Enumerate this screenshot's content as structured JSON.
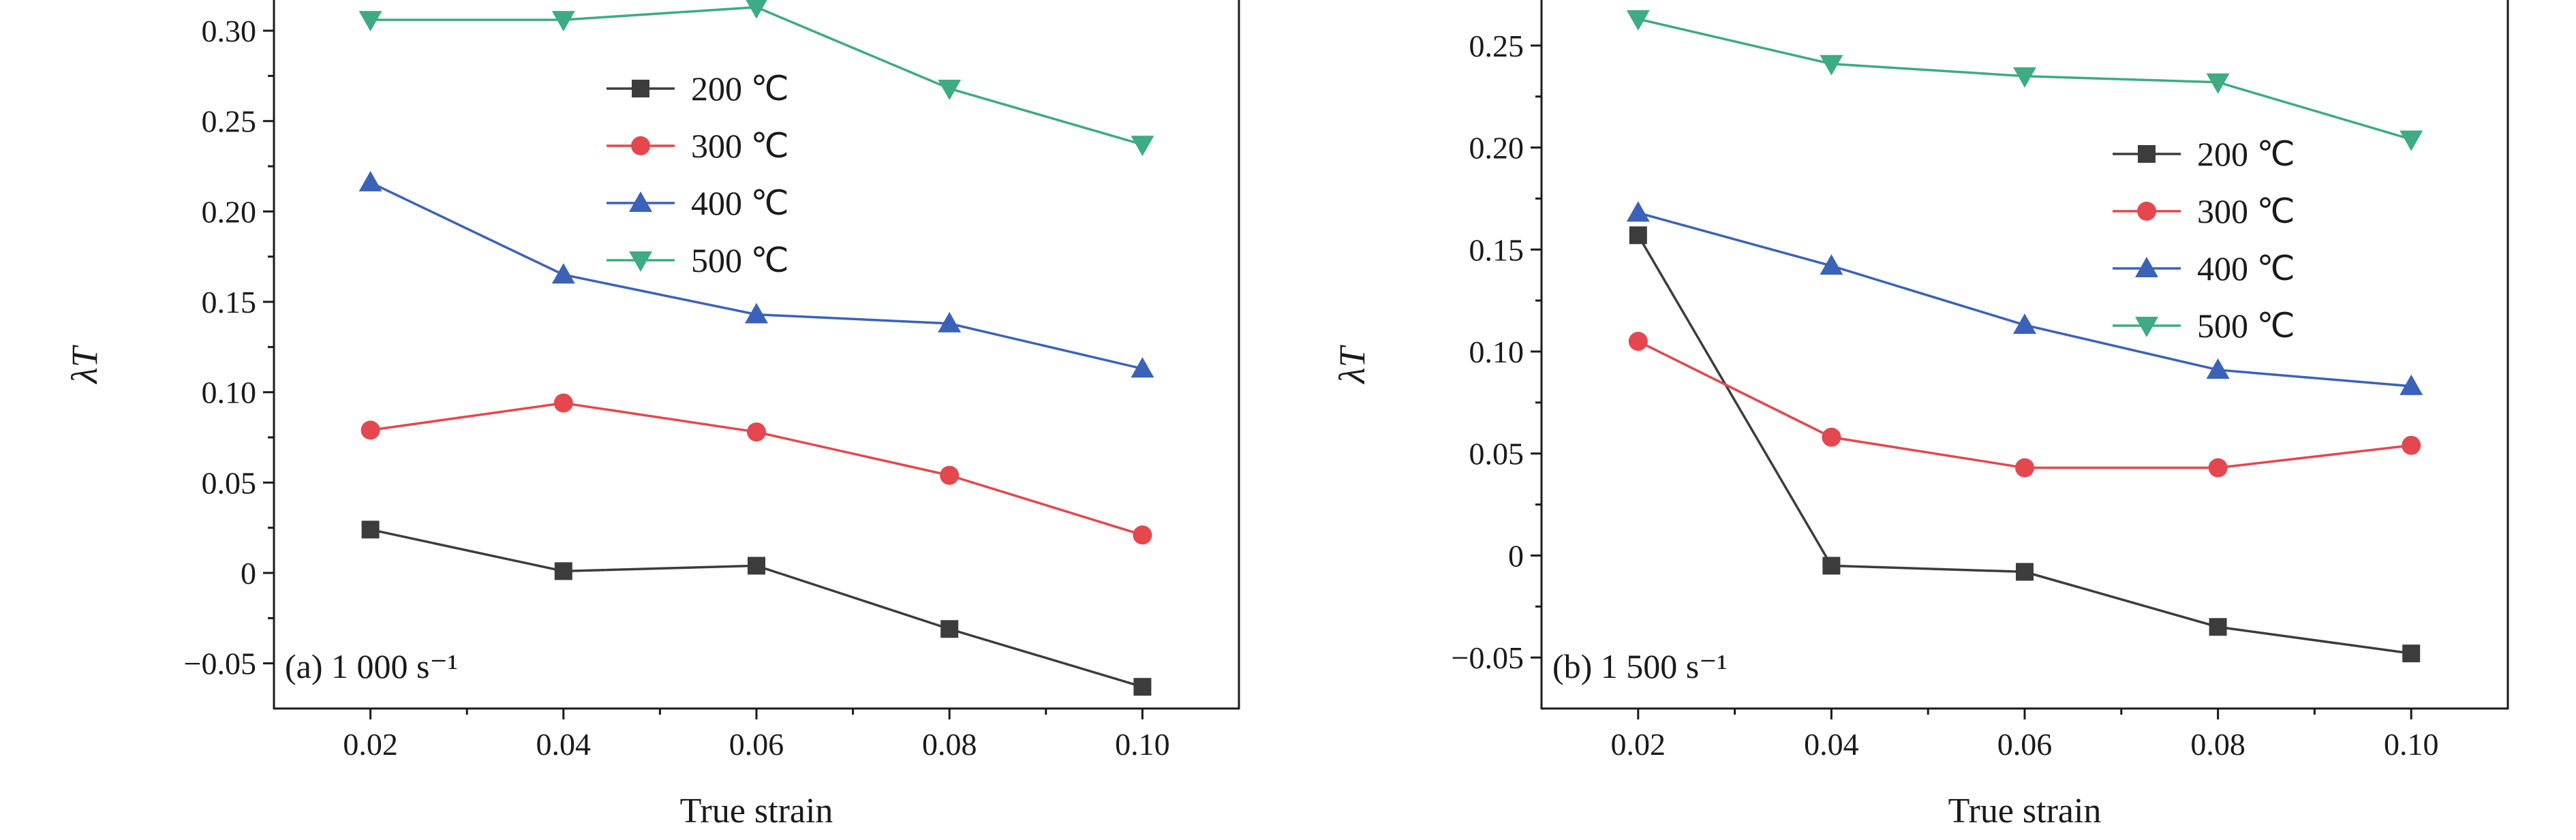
{
  "chart_data": [
    {
      "type": "line",
      "annotation": "(a) 1 000 s⁻¹",
      "xlabel": "True strain",
      "ylabel": "λT",
      "xlim": [
        0.01,
        0.11
      ],
      "ylim": [
        -0.075,
        0.32
      ],
      "xticks": [
        "0.02",
        "0.04",
        "0.06",
        "0.08",
        "0.10"
      ],
      "yticks": [
        "−0.05",
        "0",
        "0.05",
        "0.10",
        "0.15",
        "0.20",
        "0.25",
        "0.30"
      ],
      "x": [
        0.02,
        0.04,
        0.06,
        0.08,
        0.1
      ],
      "legend_position": "top-center",
      "series": [
        {
          "name": "200 ℃",
          "color": "#3c3c3c",
          "marker": "square",
          "values": [
            0.024,
            0.001,
            0.004,
            -0.031,
            -0.063
          ]
        },
        {
          "name": "300 ℃",
          "color": "#e4474d",
          "marker": "circle",
          "values": [
            0.079,
            0.094,
            0.078,
            0.054,
            0.021
          ]
        },
        {
          "name": "400 ℃",
          "color": "#3a62b8",
          "marker": "triangle-up",
          "values": [
            0.216,
            0.165,
            0.143,
            0.138,
            0.113
          ]
        },
        {
          "name": "500 ℃",
          "color": "#3dab84",
          "marker": "triangle-down",
          "values": [
            0.306,
            0.306,
            0.313,
            0.268,
            0.237
          ]
        }
      ]
    },
    {
      "type": "line",
      "annotation": "(b) 1 500 s⁻¹",
      "xlabel": "True strain",
      "ylabel": "λT",
      "xlim": [
        0.01,
        0.11
      ],
      "ylim": [
        -0.075,
        0.275
      ],
      "xticks": [
        "0.02",
        "0.04",
        "0.06",
        "0.08",
        "0.10"
      ],
      "yticks": [
        "−0.05",
        "0",
        "0.05",
        "0.10",
        "0.15",
        "0.20",
        "0.25"
      ],
      "x": [
        0.02,
        0.04,
        0.06,
        0.08,
        0.1
      ],
      "legend_position": "top-right",
      "series": [
        {
          "name": "200 ℃",
          "color": "#3c3c3c",
          "marker": "square",
          "values": [
            0.157,
            -0.005,
            -0.008,
            -0.035,
            -0.048
          ]
        },
        {
          "name": "300 ℃",
          "color": "#e4474d",
          "marker": "circle",
          "values": [
            0.105,
            0.058,
            0.043,
            0.043,
            0.054
          ]
        },
        {
          "name": "400 ℃",
          "color": "#3a62b8",
          "marker": "triangle-up",
          "values": [
            0.168,
            0.142,
            0.113,
            0.091,
            0.083
          ]
        },
        {
          "name": "500 ℃",
          "color": "#3dab84",
          "marker": "triangle-down",
          "values": [
            0.263,
            0.241,
            0.235,
            0.232,
            0.204
          ]
        }
      ]
    }
  ]
}
